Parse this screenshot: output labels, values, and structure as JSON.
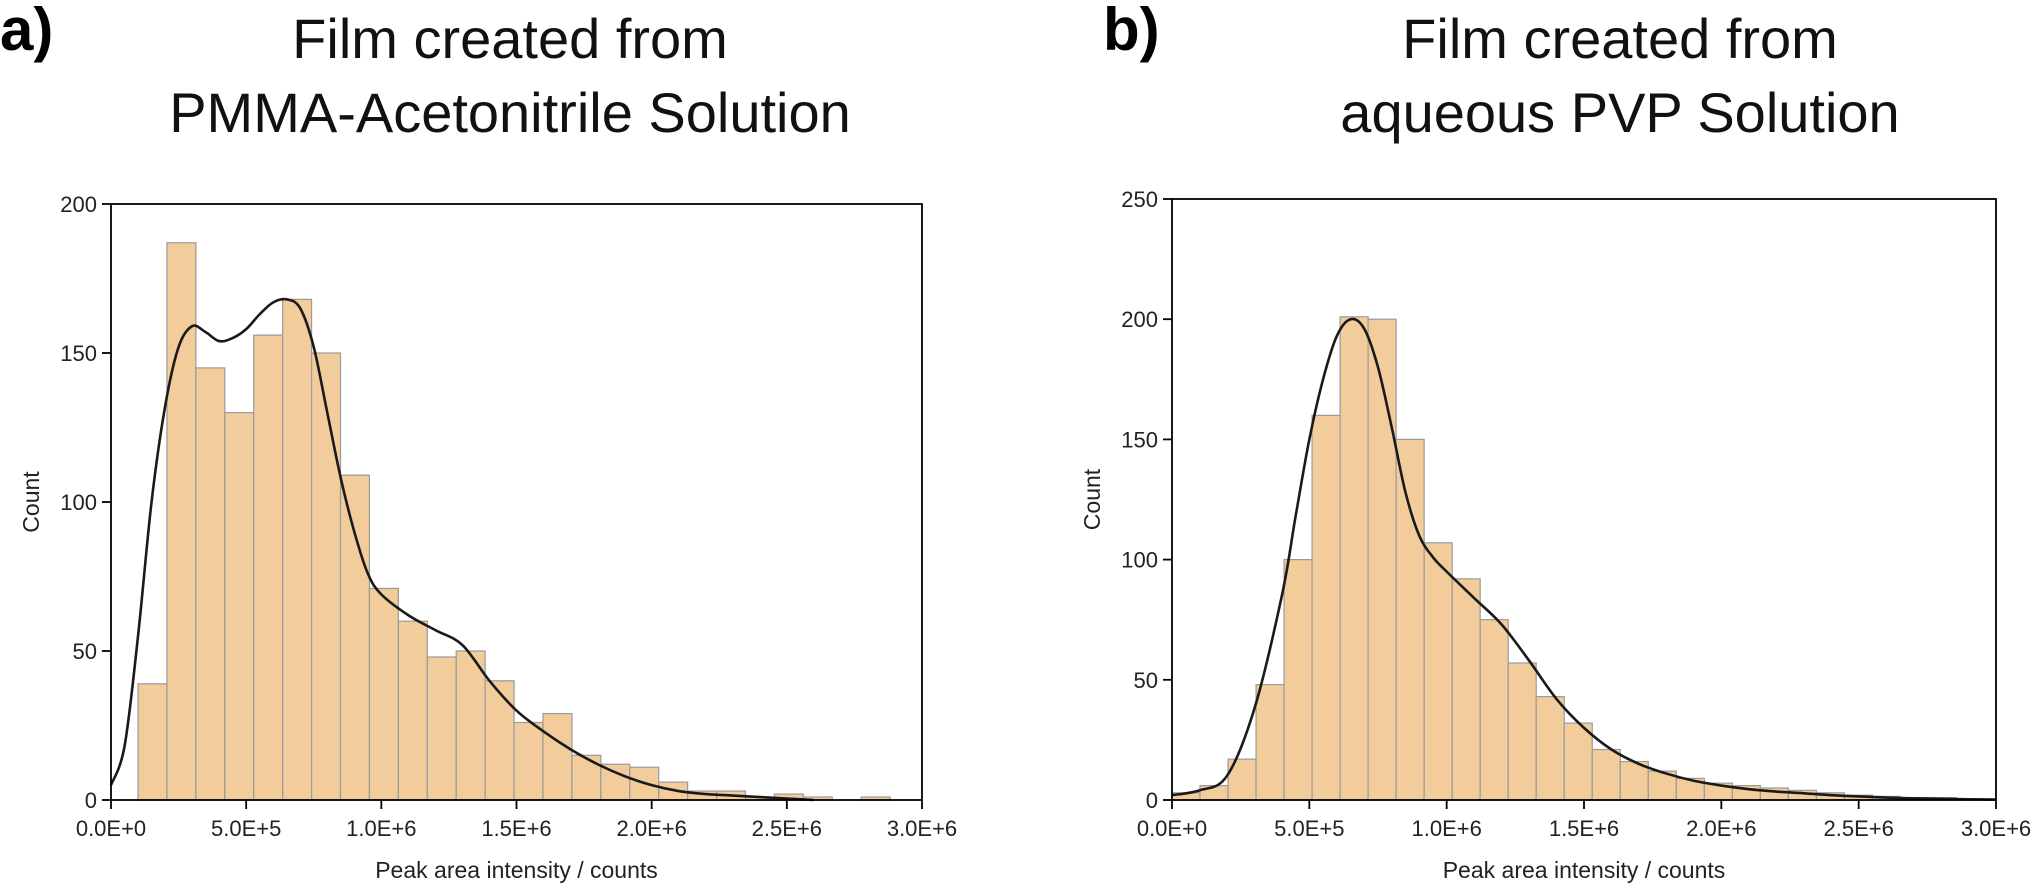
{
  "figure": {
    "panels": [
      {
        "letter": "a)",
        "title_line1": "Film created from",
        "title_line2": "PMMA-Acetonitrile Solution"
      },
      {
        "letter": "b)",
        "title_line1": "Film created from",
        "title_line2": "aqueous PVP Solution"
      }
    ]
  },
  "colors": {
    "bar_fill": "#f2cc9a",
    "bar_stroke": "#9a9a9a",
    "curve": "#1a1a1a",
    "axis": "#000000"
  },
  "chart_data": [
    {
      "type": "bar",
      "title": "Film created from PMMA-Acetonitrile Solution",
      "xlabel": "Peak area intensity / counts",
      "ylabel": "Count",
      "xlim": [
        0,
        3000000
      ],
      "ylim": [
        0,
        200
      ],
      "x_ticks": [
        0,
        500000,
        1000000,
        1500000,
        2000000,
        2500000,
        3000000
      ],
      "x_tick_labels": [
        "0.0E+0",
        "5.0E+5",
        "1.0E+6",
        "1.5E+6",
        "2.0E+6",
        "2.5E+6",
        "3.0E+6"
      ],
      "y_ticks": [
        0,
        50,
        100,
        150,
        200
      ],
      "y_tick_labels": [
        "0",
        "50",
        "100",
        "150",
        "200"
      ],
      "bin_width": 107000,
      "bin_starts": [
        100000,
        207000,
        314000,
        421000,
        528000,
        635000,
        742000,
        849000,
        956000,
        1063000,
        1170000,
        1277000,
        1384000,
        1491000,
        1598000,
        1705000,
        1812000,
        1919000,
        2026000,
        2133000,
        2240000,
        2347000,
        2454000,
        2561000,
        2668000,
        2775000
      ],
      "counts": [
        39,
        187,
        145,
        130,
        156,
        168,
        150,
        109,
        71,
        60,
        48,
        50,
        40,
        26,
        29,
        15,
        12,
        11,
        6,
        3,
        3,
        1,
        2,
        1,
        0,
        1
      ],
      "curve": {
        "x": [
          0,
          50000,
          100000,
          150000,
          200000,
          250000,
          300000,
          350000,
          400000,
          450000,
          500000,
          550000,
          600000,
          650000,
          700000,
          750000,
          800000,
          850000,
          900000,
          950000,
          1000000,
          1100000,
          1200000,
          1300000,
          1400000,
          1500000,
          1600000,
          1700000,
          1800000,
          1900000,
          2000000,
          2100000,
          2200000,
          2300000,
          2400000,
          2500000,
          2600000
        ],
        "y": [
          5,
          18,
          55,
          100,
          132,
          152,
          159,
          157,
          154,
          155,
          158,
          163,
          167,
          168,
          165,
          152,
          130,
          108,
          90,
          76,
          69,
          62,
          57,
          52,
          40,
          30,
          23,
          17,
          12,
          8,
          5,
          3,
          2,
          1.5,
          1,
          0.5,
          0
        ]
      }
    },
    {
      "type": "bar",
      "title": "Film created from aqueous PVP Solution",
      "xlabel": "Peak area intensity / counts",
      "ylabel": "Count",
      "xlim": [
        0,
        3000000
      ],
      "ylim": [
        0,
        250
      ],
      "x_ticks": [
        0,
        500000,
        1000000,
        1500000,
        2000000,
        2500000,
        3000000
      ],
      "x_tick_labels": [
        "0.0E+0",
        "5.0E+5",
        "1.0E+6",
        "1.5E+6",
        "2.0E+6",
        "2.5E+6",
        "3.0E+6"
      ],
      "y_ticks": [
        0,
        50,
        100,
        150,
        200,
        250
      ],
      "y_tick_labels": [
        "0",
        "50",
        "100",
        "150",
        "200",
        "250"
      ],
      "bin_width": 102000,
      "bin_starts": [
        0,
        102000,
        204000,
        306000,
        408000,
        510000,
        612000,
        714000,
        816000,
        918000,
        1020000,
        1122000,
        1224000,
        1326000,
        1428000,
        1530000,
        1632000,
        1734000,
        1836000,
        1938000,
        2040000,
        2142000,
        2244000,
        2346000,
        2448000,
        2550000,
        2652000,
        2754000,
        2856000
      ],
      "counts": [
        3,
        6,
        17,
        48,
        100,
        160,
        201,
        200,
        150,
        107,
        92,
        75,
        57,
        43,
        32,
        21,
        16,
        12,
        9,
        7,
        6,
        5,
        4,
        3,
        2,
        1.5,
        1,
        1,
        0.5
      ],
      "curve": {
        "x": [
          0,
          100000,
          200000,
          300000,
          400000,
          450000,
          500000,
          550000,
          600000,
          650000,
          700000,
          750000,
          800000,
          850000,
          900000,
          950000,
          1000000,
          1100000,
          1200000,
          1300000,
          1400000,
          1500000,
          1600000,
          1700000,
          1800000,
          1900000,
          2000000,
          2100000,
          2200000,
          2300000,
          2400000,
          2500000,
          2600000,
          2700000,
          2800000,
          2900000,
          3000000
        ],
        "y": [
          2,
          4,
          10,
          38,
          85,
          118,
          150,
          175,
          193,
          200,
          196,
          180,
          155,
          128,
          110,
          101,
          95,
          84,
          73,
          58,
          42,
          30,
          21,
          15,
          11,
          8,
          6,
          4.5,
          3.5,
          2.8,
          2,
          1.5,
          1,
          0.7,
          0.5,
          0.3,
          0.2
        ]
      }
    }
  ]
}
